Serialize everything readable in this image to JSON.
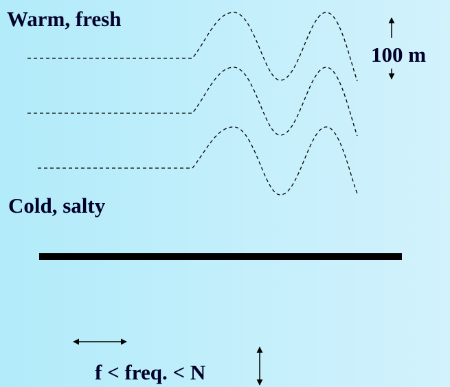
{
  "labels": {
    "top_layer": "Warm, fresh",
    "bottom_layer": "Cold, salty",
    "scale": "100 m",
    "frequency": "f < freq. < N"
  }
}
